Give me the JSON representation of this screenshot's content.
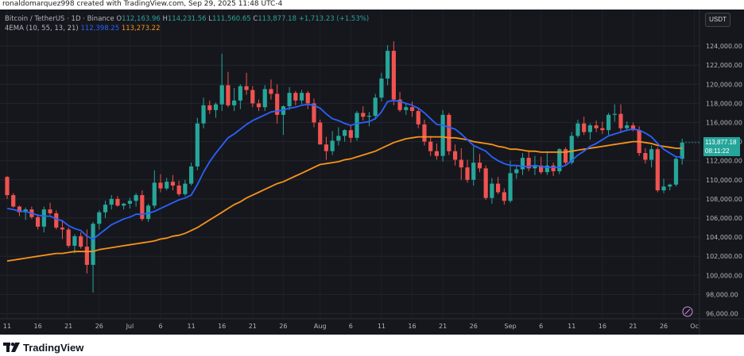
{
  "credit": "ronaldomarquez998 created with TradingView.com, Sep 29, 2025 11:48 UTC-4",
  "legend": {
    "symbol": "Bitcoin / TetherUS · 1D · Binance",
    "o_label": "O",
    "o": "112,163.96",
    "h_label": "H",
    "h": "114,231.56",
    "l_label": "L",
    "l": "111,560.65",
    "c_label": "C",
    "c": "113,877.18",
    "change": "+1,713.23 (+1.53%)",
    "indicator": "4EMA (10, 55, 13, 21)",
    "ema_fast": "112,398.25",
    "ema_slow": "113,273.22"
  },
  "currency": "USDT",
  "last_price": {
    "value": "113,877.18",
    "countdown": "08:11:22"
  },
  "brand": "TradingView",
  "colors": {
    "up": "#26a69a",
    "down": "#ef5350",
    "ema_fast": "#2962ff",
    "ema_slow": "#f7931a",
    "background": "#16171d"
  },
  "chart_data": {
    "type": "candlestick",
    "ylim": [
      95000,
      126000
    ],
    "y_ticks": [
      "124,000.00",
      "122,000.00",
      "120,000.00",
      "118,000.00",
      "116,000.00",
      "114,000.00",
      "112,000.00",
      "110,000.00",
      "108,000.00",
      "106,000.00",
      "104,000.00",
      "102,000.00",
      "100,000.00",
      "98,000.00",
      "96,000.00"
    ],
    "y_tick_values": [
      124000,
      122000,
      120000,
      118000,
      116000,
      114000,
      112000,
      110000,
      108000,
      106000,
      104000,
      102000,
      100000,
      98000,
      96000
    ],
    "x_ticks": [
      {
        "label": "11",
        "bar": 0
      },
      {
        "label": "16",
        "bar": 5
      },
      {
        "label": "21",
        "bar": 10
      },
      {
        "label": "26",
        "bar": 15
      },
      {
        "label": "Jul",
        "bar": 20
      },
      {
        "label": "6",
        "bar": 25
      },
      {
        "label": "11",
        "bar": 30
      },
      {
        "label": "16",
        "bar": 35
      },
      {
        "label": "21",
        "bar": 40
      },
      {
        "label": "26",
        "bar": 45
      },
      {
        "label": "Aug",
        "bar": 51
      },
      {
        "label": "6",
        "bar": 56
      },
      {
        "label": "11",
        "bar": 61
      },
      {
        "label": "16",
        "bar": 66
      },
      {
        "label": "21",
        "bar": 71
      },
      {
        "label": "26",
        "bar": 76
      },
      {
        "label": "Sep",
        "bar": 82
      },
      {
        "label": "6",
        "bar": 87
      },
      {
        "label": "11",
        "bar": 92
      },
      {
        "label": "16",
        "bar": 97
      },
      {
        "label": "21",
        "bar": 102
      },
      {
        "label": "26",
        "bar": 107
      },
      {
        "label": "Oc",
        "bar": 112
      }
    ],
    "ohlc": [
      [
        110300,
        110400,
        108000,
        108400
      ],
      [
        108400,
        108600,
        107100,
        107200
      ],
      [
        107200,
        107300,
        106200,
        106600
      ],
      [
        106600,
        107100,
        105800,
        106900
      ],
      [
        106900,
        107200,
        105900,
        106100
      ],
      [
        106100,
        106400,
        104800,
        105100
      ],
      [
        105100,
        107200,
        104500,
        106900
      ],
      [
        106900,
        107600,
        106300,
        106500
      ],
      [
        106500,
        106800,
        104800,
        105000
      ],
      [
        105000,
        105800,
        103800,
        104800
      ],
      [
        104800,
        105000,
        102900,
        103100
      ],
      [
        103100,
        104300,
        102300,
        104100
      ],
      [
        104100,
        104500,
        102800,
        103000
      ],
      [
        103000,
        104800,
        100200,
        101100
      ],
      [
        101100,
        105600,
        98200,
        105400
      ],
      [
        105400,
        106800,
        104800,
        106600
      ],
      [
        106600,
        107800,
        106000,
        107400
      ],
      [
        107400,
        108400,
        106900,
        108000
      ],
      [
        108000,
        108300,
        107200,
        107300
      ],
      [
        107300,
        107600,
        106900,
        107500
      ],
      [
        107500,
        108100,
        107000,
        107800
      ],
      [
        107800,
        108600,
        107200,
        108400
      ],
      [
        108400,
        108900,
        105700,
        105900
      ],
      [
        105900,
        107500,
        105600,
        107300
      ],
      [
        107300,
        111000,
        107000,
        109700
      ],
      [
        109700,
        110600,
        108700,
        109100
      ],
      [
        109100,
        110200,
        108900,
        109800
      ],
      [
        109800,
        110500,
        108900,
        109400
      ],
      [
        109400,
        109900,
        108300,
        108500
      ],
      [
        108500,
        110000,
        108300,
        109600
      ],
      [
        109600,
        111800,
        109400,
        111400
      ],
      [
        111400,
        116500,
        111000,
        115900
      ],
      [
        115900,
        118600,
        115400,
        117800
      ],
      [
        117800,
        118300,
        116900,
        117300
      ],
      [
        117300,
        118100,
        116500,
        117900
      ],
      [
        117900,
        123200,
        117200,
        119900
      ],
      [
        119900,
        121300,
        117600,
        117800
      ],
      [
        117800,
        119600,
        117200,
        118300
      ],
      [
        118300,
        120000,
        117400,
        119800
      ],
      [
        119800,
        121200,
        118900,
        119400
      ],
      [
        119400,
        119800,
        117600,
        118000
      ],
      [
        118000,
        118400,
        117200,
        117600
      ],
      [
        117600,
        119900,
        117200,
        119500
      ],
      [
        119500,
        120500,
        118400,
        119000
      ],
      [
        119000,
        120000,
        115900,
        116800
      ],
      [
        116800,
        117800,
        114700,
        117700
      ],
      [
        117700,
        119700,
        117300,
        119100
      ],
      [
        119100,
        119300,
        117800,
        118300
      ],
      [
        118300,
        119400,
        117900,
        119100
      ],
      [
        119100,
        119300,
        117400,
        118000
      ],
      [
        118000,
        118500,
        115500,
        116000
      ],
      [
        116000,
        116300,
        113800,
        113700
      ],
      [
        113700,
        114500,
        112100,
        113000
      ],
      [
        113000,
        115100,
        112600,
        114100
      ],
      [
        114100,
        115500,
        113600,
        114600
      ],
      [
        114600,
        115300,
        114000,
        115200
      ],
      [
        115200,
        115700,
        113900,
        114400
      ],
      [
        114400,
        117200,
        114100,
        117000
      ],
      [
        117000,
        117700,
        116200,
        116600
      ],
      [
        116600,
        117100,
        115600,
        116700
      ],
      [
        116700,
        119000,
        116300,
        118600
      ],
      [
        118600,
        121200,
        118200,
        120600
      ],
      [
        120600,
        124100,
        119900,
        123500
      ],
      [
        123500,
        124500,
        117800,
        118400
      ],
      [
        118400,
        119200,
        117100,
        117300
      ],
      [
        117300,
        118000,
        116800,
        117600
      ],
      [
        117600,
        118200,
        116600,
        117200
      ],
      [
        117200,
        117500,
        115400,
        115800
      ],
      [
        115800,
        116300,
        113600,
        114000
      ],
      [
        114000,
        114600,
        112500,
        113000
      ],
      [
        113000,
        113800,
        112100,
        112500
      ],
      [
        112500,
        117300,
        111900,
        116800
      ],
      [
        116800,
        117000,
        112600,
        113000
      ],
      [
        113000,
        113700,
        111500,
        112100
      ],
      [
        112100,
        113300,
        110000,
        111300
      ],
      [
        111300,
        112100,
        109700,
        110000
      ],
      [
        110000,
        113500,
        109400,
        111800
      ],
      [
        111800,
        112700,
        110800,
        111200
      ],
      [
        111200,
        111500,
        107900,
        108100
      ],
      [
        108100,
        110200,
        107500,
        109600
      ],
      [
        109600,
        110300,
        108500,
        108700
      ],
      [
        108700,
        109100,
        107400,
        107800
      ],
      [
        107800,
        112000,
        107600,
        110700
      ],
      [
        110700,
        111500,
        110100,
        111100
      ],
      [
        111100,
        112800,
        110500,
        112300
      ],
      [
        112300,
        113100,
        110900,
        111200
      ],
      [
        111200,
        112500,
        110500,
        111500
      ],
      [
        111500,
        112400,
        110600,
        110800
      ],
      [
        110800,
        113000,
        110500,
        111500
      ],
      [
        111500,
        111800,
        110400,
        110900
      ],
      [
        110900,
        113300,
        110600,
        113200
      ],
      [
        113200,
        113400,
        111600,
        111800
      ],
      [
        111800,
        115000,
        111600,
        114600
      ],
      [
        114600,
        116300,
        114400,
        115900
      ],
      [
        115900,
        116600,
        114700,
        115000
      ],
      [
        115000,
        115900,
        114200,
        115700
      ],
      [
        115700,
        116200,
        115000,
        115400
      ],
      [
        115400,
        116100,
        114800,
        115200
      ],
      [
        115200,
        117000,
        114700,
        116800
      ],
      [
        116800,
        117900,
        116100,
        116900
      ],
      [
        116900,
        117900,
        114900,
        115400
      ],
      [
        115400,
        116100,
        115100,
        115700
      ],
      [
        115700,
        116000,
        115100,
        115200
      ],
      [
        115200,
        115600,
        112500,
        112800
      ],
      [
        112800,
        113300,
        111700,
        112100
      ],
      [
        112100,
        113600,
        111300,
        113200
      ],
      [
        113200,
        113400,
        108700,
        108900
      ],
      [
        108900,
        110100,
        108600,
        109300
      ],
      [
        109300,
        109600,
        108900,
        109500
      ],
      [
        109500,
        112500,
        109300,
        112200
      ],
      [
        112200,
        114300,
        111600,
        113900
      ]
    ],
    "series": [
      {
        "name": "EMA 10",
        "values": [
          107000,
          106900,
          106700,
          106700,
          106500,
          106300,
          106200,
          106200,
          105900,
          105700,
          105200,
          104900,
          104700,
          104100,
          103800,
          104300,
          104800,
          105300,
          105600,
          105900,
          106100,
          106400,
          106400,
          106500,
          106700,
          107000,
          107300,
          107600,
          107900,
          108100,
          108400,
          109500,
          110800,
          111900,
          112800,
          113600,
          114400,
          114800,
          115300,
          115800,
          116200,
          116500,
          116800,
          117100,
          117200,
          117300,
          117500,
          117600,
          117800,
          117900,
          117800,
          117500,
          116900,
          116400,
          116200,
          115900,
          115700,
          115900,
          116000,
          116100,
          116400,
          117100,
          118200,
          118300,
          118200,
          118000,
          117800,
          117500,
          117000,
          116400,
          115800,
          115700,
          115500,
          115300,
          114800,
          114200,
          113600,
          113300,
          113000,
          112400,
          112000,
          111700,
          111500,
          111500,
          111400,
          111400,
          111500,
          111400,
          111300,
          111300,
          111300,
          111500,
          112000,
          112600,
          113000,
          113500,
          113800,
          114200,
          114600,
          114800,
          115000,
          115200,
          115300,
          115200,
          114900,
          114500,
          113800,
          113200,
          112800,
          112400,
          112400
        ]
      },
      {
        "name": "EMA 55",
        "values": [
          101500,
          101600,
          101700,
          101800,
          101900,
          102000,
          102100,
          102200,
          102300,
          102300,
          102400,
          102500,
          102500,
          102500,
          102500,
          102700,
          102800,
          102900,
          103000,
          103100,
          103200,
          103300,
          103400,
          103500,
          103600,
          103800,
          103900,
          104100,
          104200,
          104400,
          104700,
          105000,
          105400,
          105800,
          106200,
          106600,
          107000,
          107400,
          107700,
          108100,
          108400,
          108700,
          109000,
          109300,
          109600,
          109800,
          110100,
          110400,
          110700,
          111000,
          111300,
          111600,
          111700,
          111800,
          111900,
          112100,
          112200,
          112400,
          112600,
          112800,
          113000,
          113300,
          113600,
          113900,
          114100,
          114300,
          114400,
          114500,
          114500,
          114500,
          114500,
          114500,
          114400,
          114400,
          114300,
          114200,
          114000,
          113900,
          113800,
          113700,
          113500,
          113400,
          113200,
          113200,
          113100,
          113000,
          113000,
          112900,
          112900,
          112900,
          112900,
          112900,
          113000,
          113100,
          113200,
          113300,
          113400,
          113500,
          113600,
          113700,
          113800,
          113900,
          114000,
          114000,
          113900,
          113800,
          113600,
          113500,
          113400,
          113300,
          113300
        ]
      }
    ]
  }
}
